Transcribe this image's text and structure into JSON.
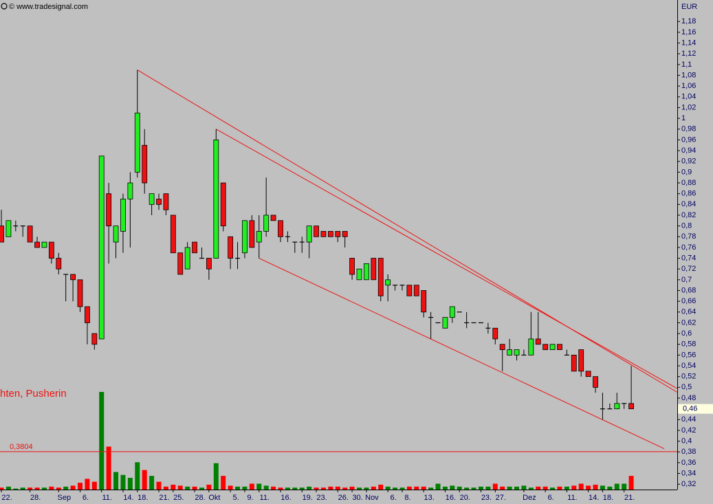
{
  "chart_data": {
    "type": "candlestick",
    "watermark": "© www.tradesignal.com",
    "currency": "EUR",
    "annotation": "hten, Pusherin",
    "up_color": "#22ee22",
    "down_color": "#ee1111",
    "line_color": "#ee1111",
    "volume_up_color": "#008000",
    "volume_down_color": "#ff0000",
    "ylim": [
      0.31,
      1.22
    ],
    "yticks": [
      {
        "value": 0.32,
        "label": "0,32"
      },
      {
        "value": 0.34,
        "label": "0,34"
      },
      {
        "value": 0.36,
        "label": "0,36"
      },
      {
        "value": 0.38,
        "label": "0,38"
      },
      {
        "value": 0.4,
        "label": "0,4"
      },
      {
        "value": 0.42,
        "label": "0,42"
      },
      {
        "value": 0.44,
        "label": "0,44"
      },
      {
        "value": 0.46,
        "label": "0,46"
      },
      {
        "value": 0.48,
        "label": "0,48"
      },
      {
        "value": 0.5,
        "label": "0,5"
      },
      {
        "value": 0.52,
        "label": "0,52"
      },
      {
        "value": 0.54,
        "label": "0,54"
      },
      {
        "value": 0.56,
        "label": "0,56"
      },
      {
        "value": 0.58,
        "label": "0,58"
      },
      {
        "value": 0.6,
        "label": "0,6"
      },
      {
        "value": 0.62,
        "label": "0,62"
      },
      {
        "value": 0.64,
        "label": "0,64"
      },
      {
        "value": 0.66,
        "label": "0,66"
      },
      {
        "value": 0.68,
        "label": "0,68"
      },
      {
        "value": 0.7,
        "label": "0,7"
      },
      {
        "value": 0.72,
        "label": "0,72"
      },
      {
        "value": 0.74,
        "label": "0,74"
      },
      {
        "value": 0.76,
        "label": "0,76"
      },
      {
        "value": 0.78,
        "label": "0,78"
      },
      {
        "value": 0.8,
        "label": "0,8"
      },
      {
        "value": 0.82,
        "label": "0,82"
      },
      {
        "value": 0.84,
        "label": "0,84"
      },
      {
        "value": 0.86,
        "label": "0,86"
      },
      {
        "value": 0.88,
        "label": "0,88"
      },
      {
        "value": 0.9,
        "label": "0,9"
      },
      {
        "value": 0.92,
        "label": "0,92"
      },
      {
        "value": 0.94,
        "label": "0,94"
      },
      {
        "value": 0.96,
        "label": "0,96"
      },
      {
        "value": 0.98,
        "label": "0,98"
      },
      {
        "value": 1,
        "label": "1"
      },
      {
        "value": 1.02,
        "label": "1,02"
      },
      {
        "value": 1.04,
        "label": "1,04"
      },
      {
        "value": 1.06,
        "label": "1,06"
      },
      {
        "value": 1.08,
        "label": "1,08"
      },
      {
        "value": 1.1,
        "label": "1,1"
      },
      {
        "value": 1.12,
        "label": "1,12"
      },
      {
        "value": 1.14,
        "label": "1,14"
      },
      {
        "value": 1.16,
        "label": "1,16"
      },
      {
        "value": 1.18,
        "label": "1,18"
      }
    ],
    "xticks": [
      {
        "value": 0,
        "label": "22."
      },
      {
        "value": 4,
        "label": "28."
      },
      {
        "value": 8,
        "label": "Sep"
      },
      {
        "value": 11,
        "label": "6."
      },
      {
        "value": 14,
        "label": "11."
      },
      {
        "value": 17,
        "label": "14."
      },
      {
        "value": 19,
        "label": "18."
      },
      {
        "value": 22,
        "label": "21."
      },
      {
        "value": 24,
        "label": "25."
      },
      {
        "value": 27,
        "label": "28."
      },
      {
        "value": 29,
        "label": "Okt"
      },
      {
        "value": 32,
        "label": "5."
      },
      {
        "value": 34,
        "label": "9."
      },
      {
        "value": 36,
        "label": "11."
      },
      {
        "value": 39,
        "label": "16."
      },
      {
        "value": 42,
        "label": "19."
      },
      {
        "value": 44,
        "label": "23."
      },
      {
        "value": 47,
        "label": "26."
      },
      {
        "value": 49,
        "label": "30."
      },
      {
        "value": 51,
        "label": "Nov"
      },
      {
        "value": 54,
        "label": "6."
      },
      {
        "value": 56,
        "label": "8."
      },
      {
        "value": 59,
        "label": "13."
      },
      {
        "value": 62,
        "label": "16."
      },
      {
        "value": 64,
        "label": "20."
      },
      {
        "value": 67,
        "label": "23."
      },
      {
        "value": 69,
        "label": "27."
      },
      {
        "value": 73,
        "label": "Dez"
      },
      {
        "value": 76,
        "label": "6."
      },
      {
        "value": 79,
        "label": "11."
      },
      {
        "value": 82,
        "label": "14."
      },
      {
        "value": 84,
        "label": "18."
      },
      {
        "value": 87,
        "label": "21."
      }
    ],
    "open": [
      0.8,
      0.78,
      0.8,
      0.8,
      0.8,
      0.77,
      0.76,
      0.77,
      0.74,
      0.71,
      0.71,
      0.7,
      0.65,
      0.6,
      0.59,
      0.86,
      0.77,
      0.79,
      0.85,
      0.9,
      0.95,
      0.84,
      0.85,
      0.86,
      0.82,
      0.75,
      0.72,
      0.77,
      0.74,
      0.74,
      0.74,
      0.88,
      0.78,
      0.74,
      0.75,
      0.81,
      0.77,
      0.79,
      0.82,
      0.81,
      0.78,
      0.77,
      0.77,
      0.77,
      0.8,
      0.79,
      0.79,
      0.79,
      0.79,
      0.74,
      0.7,
      0.7,
      0.74,
      0.74,
      0.69,
      0.69,
      0.69,
      0.69,
      0.69,
      0.68,
      0.63,
      0.62,
      0.61,
      0.63,
      0.64,
      0.62,
      0.62,
      0.62,
      0.61,
      0.61,
      0.58,
      0.56,
      0.56,
      0.56,
      0.56,
      0.59,
      0.58,
      0.57,
      0.58,
      0.56,
      0.56,
      0.57,
      0.53,
      0.52,
      0.46,
      0.46,
      0.46,
      0.47,
      0.47
    ],
    "high": [
      0.83,
      0.81,
      0.81,
      0.8,
      0.8,
      0.78,
      0.77,
      0.77,
      0.75,
      0.71,
      0.71,
      0.7,
      0.65,
      0.6,
      0.93,
      0.88,
      0.8,
      0.86,
      0.9,
      1.09,
      0.98,
      0.86,
      0.86,
      0.86,
      0.82,
      0.75,
      0.77,
      0.77,
      0.76,
      0.74,
      0.98,
      0.88,
      0.78,
      0.77,
      0.81,
      0.82,
      0.82,
      0.89,
      0.82,
      0.81,
      0.79,
      0.77,
      0.78,
      0.8,
      0.8,
      0.79,
      0.79,
      0.79,
      0.79,
      0.74,
      0.72,
      0.73,
      0.74,
      0.74,
      0.71,
      0.69,
      0.69,
      0.69,
      0.69,
      0.68,
      0.64,
      0.62,
      0.63,
      0.65,
      0.64,
      0.64,
      0.62,
      0.62,
      0.62,
      0.61,
      0.58,
      0.59,
      0.57,
      0.57,
      0.64,
      0.64,
      0.58,
      0.58,
      0.58,
      0.57,
      0.56,
      0.57,
      0.53,
      0.52,
      0.49,
      0.47,
      0.49,
      0.47,
      0.54
    ],
    "low": [
      0.77,
      0.78,
      0.79,
      0.78,
      0.77,
      0.76,
      0.76,
      0.73,
      0.71,
      0.66,
      0.66,
      0.64,
      0.58,
      0.57,
      0.59,
      0.73,
      0.74,
      0.75,
      0.76,
      0.89,
      0.86,
      0.82,
      0.83,
      0.82,
      0.75,
      0.71,
      0.72,
      0.75,
      0.74,
      0.7,
      0.74,
      0.79,
      0.72,
      0.72,
      0.74,
      0.76,
      0.74,
      0.78,
      0.81,
      0.77,
      0.77,
      0.75,
      0.75,
      0.74,
      0.78,
      0.78,
      0.78,
      0.77,
      0.76,
      0.7,
      0.7,
      0.7,
      0.7,
      0.66,
      0.66,
      0.68,
      0.68,
      0.67,
      0.67,
      0.63,
      0.59,
      0.62,
      0.61,
      0.62,
      0.64,
      0.61,
      0.62,
      0.62,
      0.6,
      0.58,
      0.53,
      0.56,
      0.55,
      0.56,
      0.56,
      0.58,
      0.57,
      0.57,
      0.57,
      0.56,
      0.53,
      0.52,
      0.52,
      0.49,
      0.44,
      0.46,
      0.46,
      0.46,
      0.46
    ],
    "close": [
      0.77,
      0.81,
      0.8,
      0.8,
      0.77,
      0.76,
      0.77,
      0.74,
      0.72,
      0.71,
      0.7,
      0.65,
      0.62,
      0.58,
      0.93,
      0.8,
      0.8,
      0.85,
      0.88,
      1.01,
      0.88,
      0.86,
      0.84,
      0.83,
      0.75,
      0.71,
      0.76,
      0.75,
      0.74,
      0.72,
      0.96,
      0.8,
      0.74,
      0.74,
      0.81,
      0.76,
      0.79,
      0.82,
      0.81,
      0.78,
      0.78,
      0.77,
      0.77,
      0.8,
      0.78,
      0.78,
      0.78,
      0.78,
      0.78,
      0.71,
      0.72,
      0.73,
      0.7,
      0.67,
      0.7,
      0.69,
      0.69,
      0.67,
      0.67,
      0.64,
      0.63,
      0.62,
      0.63,
      0.65,
      0.64,
      0.62,
      0.62,
      0.62,
      0.61,
      0.59,
      0.57,
      0.57,
      0.57,
      0.56,
      0.59,
      0.58,
      0.57,
      0.58,
      0.57,
      0.56,
      0.53,
      0.53,
      0.52,
      0.5,
      0.46,
      0.46,
      0.47,
      0.47,
      0.46
    ],
    "volume": [
      2,
      3,
      1,
      2,
      2,
      2,
      2,
      3,
      2,
      3,
      4,
      7,
      11,
      8,
      100,
      44,
      18,
      15,
      12,
      28,
      20,
      14,
      8,
      3,
      5,
      4,
      3,
      3,
      2,
      5,
      27,
      14,
      4,
      3,
      3,
      6,
      6,
      4,
      3,
      2,
      2,
      2,
      2,
      3,
      2,
      2,
      3,
      3,
      2,
      3,
      2,
      2,
      3,
      5,
      3,
      2,
      2,
      3,
      3,
      3,
      2,
      6,
      3,
      4,
      3,
      2,
      2,
      3,
      3,
      6,
      3,
      3,
      3,
      4,
      2,
      3,
      3,
      2,
      3,
      3,
      4,
      6,
      4,
      5,
      4,
      3,
      6,
      6,
      14
    ],
    "trendlines": [
      {
        "from": [
          19,
          1.09
        ],
        "to": [
          94.4,
          0.491
        ]
      },
      {
        "from": [
          30,
          0.98
        ],
        "to": [
          94.4,
          0.498
        ]
      },
      {
        "from": [
          36,
          0.74
        ],
        "to": [
          92.6,
          0.386
        ]
      }
    ],
    "level": {
      "value": 0.3804,
      "label": "0,3804"
    },
    "last_price": {
      "value": 0.46,
      "label": "0,46"
    }
  }
}
